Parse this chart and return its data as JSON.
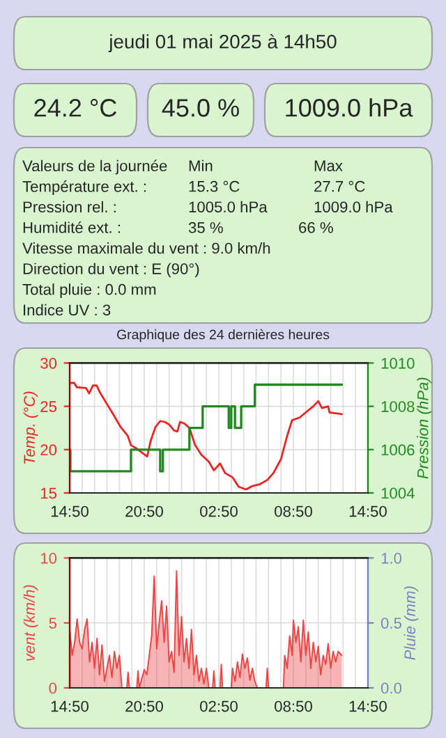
{
  "chart_data": [
    {
      "type": "other",
      "title": "jeudi 01 mai 2025 à 14h50",
      "annotations": [
        "24.2 °C",
        "45.0 %",
        "1009.0 hPa"
      ]
    },
    {
      "type": "other",
      "annotations": [
        "Valeurs de la journée",
        "Min",
        "Max",
        "Température ext. :",
        "15.3 °C",
        "27.7 °C",
        "Pression rel. :",
        "1005.0 hPa",
        "1009.0 hPa",
        "Humidité ext. :",
        "35 %",
        "66 %",
        "Vitesse maximale du vent : 9.0 km/h",
        "Direction du vent : E (90°)",
        "Total pluie : 0.0 mm",
        "Indice UV : 3"
      ]
    },
    {
      "type": "line",
      "title": "Graphique des 24 dernières heures",
      "ylabel": "Temp. (°C)",
      "y2label": "Pression (hPa)",
      "xlim": [
        "2025-04-30T14:50",
        "2025-05-01T14:50"
      ],
      "xticks": [
        {
          "value": "2025-04-30T14:50",
          "label": "14:50"
        },
        {
          "value": "2025-04-30T20:50",
          "label": "20:50"
        },
        {
          "value": "2025-05-01T02:50",
          "label": "02:50"
        },
        {
          "value": "2025-05-01T08:50",
          "label": "08:50"
        },
        {
          "value": "2025-05-01T14:50",
          "label": "14:50"
        }
      ],
      "ylim": [
        15,
        30
      ],
      "yticks": [
        15,
        20,
        25,
        30
      ],
      "y2lim": [
        1004,
        1010
      ],
      "y2ticks": [
        1004,
        1006,
        1008,
        1010
      ],
      "grid": true,
      "marker": "none",
      "line_style": "solid",
      "series": [
        {
          "type": "line",
          "color": "#ee2222",
          "x": [
            "2025-04-30T14:50",
            "2025-04-30T15:12",
            "2025-04-30T15:24",
            "2025-04-30T16:09",
            "2025-04-30T16:24",
            "2025-04-30T16:42",
            "2025-04-30T17:00",
            "2025-04-30T17:16",
            "2025-04-30T17:49",
            "2025-04-30T18:22",
            "2025-04-30T18:56",
            "2025-04-30T19:30",
            "2025-04-30T19:46",
            "2025-04-30T20:15",
            "2025-04-30T20:48",
            "2025-04-30T21:04",
            "2025-04-30T21:22",
            "2025-04-30T21:44",
            "2025-04-30T22:07",
            "2025-04-30T22:29",
            "2025-04-30T22:50",
            "2025-04-30T23:14",
            "2025-04-30T23:30",
            "2025-04-30T23:43",
            "2025-05-01T00:05",
            "2025-05-01T00:28",
            "2025-05-01T00:56",
            "2025-05-01T01:26",
            "2025-05-01T02:02",
            "2025-05-01T02:26",
            "2025-05-01T02:56",
            "2025-05-01T03:20",
            "2025-05-01T03:56",
            "2025-05-01T04:26",
            "2025-05-01T05:02",
            "2025-05-01T05:32",
            "2025-05-01T06:08",
            "2025-05-01T06:44",
            "2025-05-01T07:14",
            "2025-05-01T07:50",
            "2025-05-01T08:20",
            "2025-05-01T08:44",
            "2025-05-01T09:20",
            "2025-05-01T09:50",
            "2025-05-01T10:26",
            "2025-05-01T10:50",
            "2025-05-01T11:08",
            "2025-05-01T11:38",
            "2025-05-01T11:44",
            "2025-05-01T12:14",
            "2025-05-01T12:44"
          ],
          "values": [
            27.7,
            27.7,
            27.2,
            27.1,
            26.5,
            27.4,
            27.4,
            26.6,
            25.3,
            24.0,
            22.6,
            21.6,
            20.5,
            20.1,
            19.5,
            19.2,
            21.1,
            22.6,
            23.3,
            23.2,
            22.9,
            22.2,
            22.1,
            23.2,
            23.0,
            22.5,
            20.5,
            19.4,
            18.6,
            17.6,
            18.4,
            17.3,
            16.8,
            15.7,
            15.4,
            15.8,
            16.0,
            16.5,
            17.3,
            18.9,
            21.6,
            23.4,
            23.7,
            24.3,
            25.0,
            25.6,
            24.8,
            25.0,
            24.3,
            24.2,
            24.1
          ]
        },
        {
          "type": "step",
          "axis": "y2",
          "color": "#228822",
          "x": [
            "2025-04-30T14:50",
            "2025-04-30T14:53",
            "2025-04-30T19:46",
            "2025-04-30T22:07",
            "2025-04-30T22:20",
            "2025-05-01T00:28",
            "2025-05-01T01:32",
            "2025-05-01T03:38",
            "2025-05-01T03:50",
            "2025-05-01T04:08",
            "2025-05-01T04:38",
            "2025-05-01T05:44",
            "2025-05-01T12:44"
          ],
          "values": [
            1006,
            1005,
            1006,
            1005,
            1006,
            1007,
            1008,
            1007,
            1008,
            1007,
            1008,
            1009,
            1009
          ]
        }
      ]
    },
    {
      "type": "area",
      "ylabel": "vent (km/h)",
      "y2label": "Pluie (mm)",
      "xlim": [
        "2025-04-30T14:50",
        "2025-05-01T14:50"
      ],
      "xticks": [
        {
          "value": "2025-04-30T14:50",
          "label": "14:50"
        },
        {
          "value": "2025-04-30T20:50",
          "label": "20:50"
        },
        {
          "value": "2025-05-01T02:50",
          "label": "02:50"
        },
        {
          "value": "2025-05-01T08:50",
          "label": "08:50"
        },
        {
          "value": "2025-05-01T14:50",
          "label": "14:50"
        }
      ],
      "ylim": [
        0,
        10
      ],
      "yticks": [
        0,
        5,
        10
      ],
      "y2lim": [
        0,
        1
      ],
      "y2ticks": [
        {
          "value": 0,
          "label": "0.0"
        },
        {
          "value": 0.5,
          "label": "0.5"
        },
        {
          "value": 1,
          "label": "1.0"
        }
      ],
      "grid": true,
      "series": [
        {
          "type": "area",
          "color": "#ee4444",
          "x": [
            "2025-04-30T14:50",
            "2025-04-30T15:02",
            "2025-04-30T15:14",
            "2025-04-30T15:26",
            "2025-04-30T15:38",
            "2025-04-30T15:50",
            "2025-04-30T16:02",
            "2025-04-30T16:14",
            "2025-04-30T16:26",
            "2025-04-30T16:38",
            "2025-04-30T16:50",
            "2025-04-30T17:02",
            "2025-04-30T17:14",
            "2025-04-30T17:26",
            "2025-04-30T17:38",
            "2025-04-30T17:50",
            "2025-04-30T18:02",
            "2025-04-30T18:14",
            "2025-04-30T18:26",
            "2025-04-30T18:38",
            "2025-04-30T18:50",
            "2025-04-30T19:02",
            "2025-04-30T19:26",
            "2025-04-30T19:32",
            "2025-04-30T19:38",
            "2025-04-30T20:14",
            "2025-04-30T20:20",
            "2025-04-30T20:26",
            "2025-04-30T20:50",
            "2025-04-30T21:02",
            "2025-04-30T21:14",
            "2025-04-30T21:26",
            "2025-04-30T21:38",
            "2025-04-30T21:50",
            "2025-04-30T22:02",
            "2025-04-30T22:14",
            "2025-04-30T22:26",
            "2025-04-30T22:38",
            "2025-04-30T22:50",
            "2025-04-30T23:02",
            "2025-04-30T23:14",
            "2025-04-30T23:26",
            "2025-04-30T23:38",
            "2025-04-30T23:50",
            "2025-05-01T00:02",
            "2025-05-01T00:14",
            "2025-05-01T00:26",
            "2025-05-01T00:38",
            "2025-05-01T00:50",
            "2025-05-01T01:02",
            "2025-05-01T01:14",
            "2025-05-01T01:26",
            "2025-05-01T01:38",
            "2025-05-01T01:50",
            "2025-05-01T02:02",
            "2025-05-01T02:20",
            "2025-05-01T02:26",
            "2025-05-01T02:32",
            "2025-05-01T02:56",
            "2025-05-01T03:02",
            "2025-05-01T03:08",
            "2025-05-01T03:50",
            "2025-05-01T03:56",
            "2025-05-01T04:08",
            "2025-05-01T04:20",
            "2025-05-01T04:32",
            "2025-05-01T04:44",
            "2025-05-01T04:56",
            "2025-05-01T05:08",
            "2025-05-01T05:20",
            "2025-05-01T05:32",
            "2025-05-01T05:44",
            "2025-05-01T05:56",
            "2025-05-01T06:38",
            "2025-05-01T06:44",
            "2025-05-01T06:50",
            "2025-05-01T08:02",
            "2025-05-01T08:08",
            "2025-05-01T08:20",
            "2025-05-01T08:32",
            "2025-05-01T08:44",
            "2025-05-01T08:50",
            "2025-05-01T09:02",
            "2025-05-01T09:14",
            "2025-05-01T09:26",
            "2025-05-01T09:38",
            "2025-05-01T09:50",
            "2025-05-01T10:02",
            "2025-05-01T10:14",
            "2025-05-01T10:26",
            "2025-05-01T10:38",
            "2025-05-01T10:50",
            "2025-05-01T11:02",
            "2025-05-01T11:14",
            "2025-05-01T11:26",
            "2025-05-01T11:38",
            "2025-05-01T11:50",
            "2025-05-01T12:02",
            "2025-05-01T12:14",
            "2025-05-01T12:26",
            "2025-05-01T12:44"
          ],
          "values": [
            4.5,
            2.5,
            3.5,
            5.3,
            3.5,
            3.0,
            4.5,
            5.3,
            2.0,
            3.5,
            1.5,
            3.8,
            1.0,
            3.3,
            0.5,
            1.5,
            2.5,
            0.8,
            2.8,
            1.5,
            2.5,
            0,
            0,
            1.2,
            0,
            0,
            1.3,
            0,
            1.4,
            1.0,
            2.5,
            4.0,
            8.6,
            3.0,
            5.0,
            6.7,
            3.5,
            6.3,
            2.0,
            2.8,
            1.2,
            9.0,
            2.5,
            5.5,
            2.0,
            3.8,
            1.5,
            4.5,
            1.0,
            2.5,
            0.5,
            1.5,
            0.3,
            1.5,
            0,
            0,
            1.3,
            0,
            0,
            1.8,
            0,
            0,
            1.5,
            0.5,
            2.0,
            0.8,
            2.6,
            1.5,
            2.3,
            0.6,
            1.5,
            0.5,
            0,
            0,
            1.5,
            0,
            0,
            2.5,
            1.5,
            4.0,
            2.5,
            5.2,
            3.5,
            4.7,
            2.0,
            5.2,
            2.5,
            4.3,
            1.5,
            3.5,
            2.0,
            3.2,
            1.0,
            2.5,
            1.8,
            3.4,
            1.5,
            2.8,
            2.0,
            2.8,
            2.5
          ]
        }
      ]
    }
  ]
}
